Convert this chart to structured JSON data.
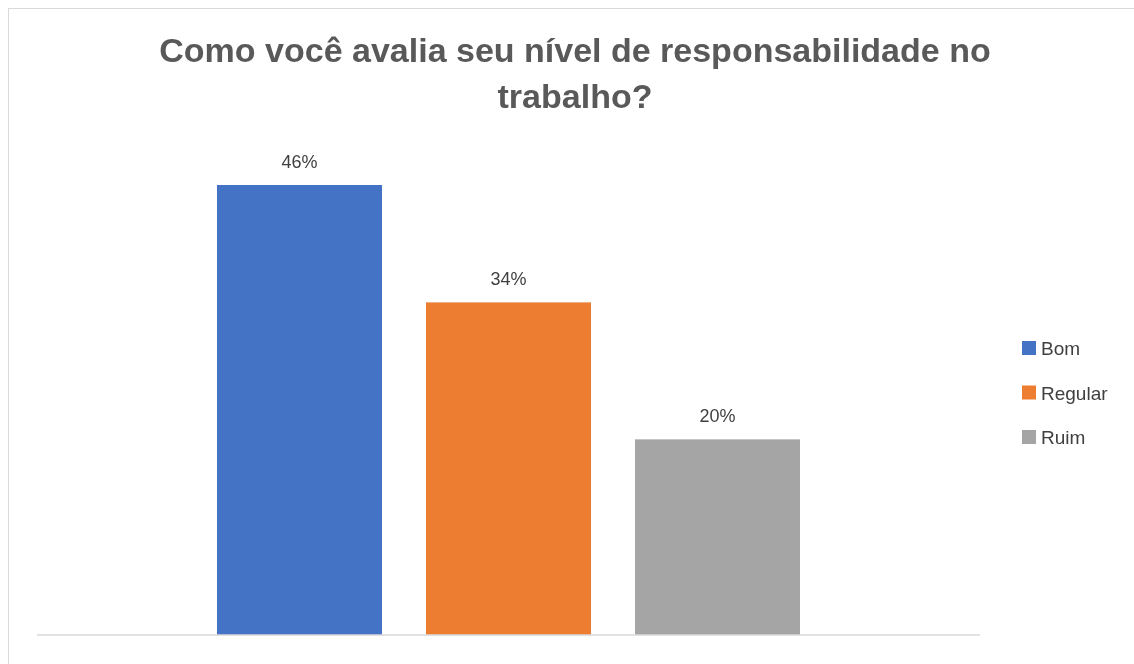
{
  "chart_data": {
    "type": "bar",
    "title": "Como você avalia seu nível de responsabilidade no trabalho?",
    "categories": [
      null
    ],
    "series": [
      {
        "name": "Bom",
        "color": "#4472c4",
        "values": [
          46
        ],
        "value_labels": [
          "46%"
        ]
      },
      {
        "name": "Regular",
        "color": "#ed7d31",
        "values": [
          34
        ],
        "value_labels": [
          "34%"
        ]
      },
      {
        "name": "Ruim",
        "color": "#a5a5a5",
        "values": [
          20
        ],
        "value_labels": [
          "20%"
        ]
      }
    ],
    "legend": "right"
  }
}
